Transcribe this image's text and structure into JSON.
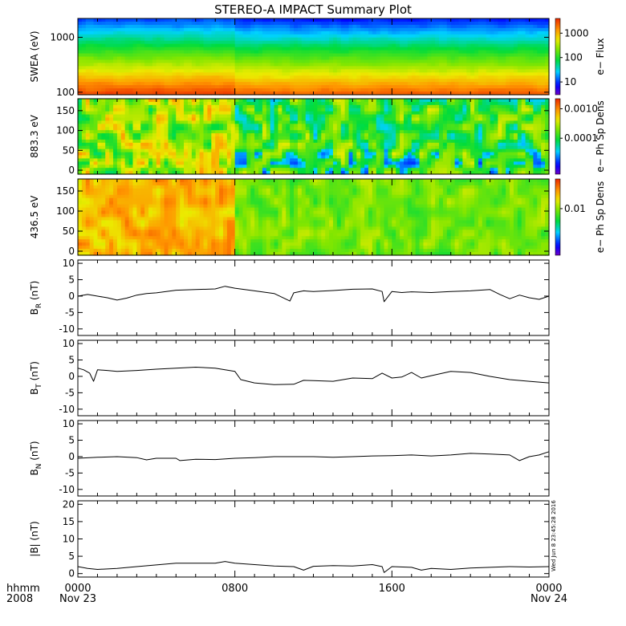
{
  "chart_data": {
    "title": "STEREO-A IMPACT Summary Plot",
    "time_axis": {
      "row1_label": "hhmm",
      "row2_label": "2008",
      "range_hours": [
        0,
        24
      ],
      "ticks": [
        {
          "hour": 0,
          "time": "0000",
          "date": "Nov 23"
        },
        {
          "hour": 8,
          "time": "0800",
          "date": ""
        },
        {
          "hour": 16,
          "time": "1600",
          "date": ""
        },
        {
          "hour": 24,
          "time": "0000",
          "date": "Nov 24"
        }
      ]
    },
    "timestamp": "Wed Jun  8 23:45:28 2016",
    "panels": [
      {
        "type": "heatmap",
        "ylabel": "SWEA (eV)",
        "yscale": "log",
        "ylim": [
          90,
          2200
        ],
        "yticks": [
          {
            "v": 100,
            "l": "100"
          },
          {
            "v": 1000,
            "l": "1000"
          }
        ],
        "colorbar_label": "e− Flux",
        "colorbar_ticks": [
          {
            "v": 10,
            "l": "10"
          },
          {
            "v": 100,
            "l": "100"
          },
          {
            "v": 1000,
            "l": "1000"
          }
        ],
        "colorbar_range": [
          3,
          4000
        ],
        "colorbar_scale": "log",
        "description": "flux decreases with energy; flux higher before 0800"
      },
      {
        "type": "heatmap",
        "ylabel": "883.3 eV",
        "yscale": "linear",
        "ylim": [
          -10,
          180
        ],
        "yticks": [
          {
            "v": 0,
            "l": "0"
          },
          {
            "v": 50,
            "l": "50"
          },
          {
            "v": 100,
            "l": "100"
          },
          {
            "v": 150,
            "l": "150"
          }
        ],
        "colorbar_label": "e− Ph Sp Dens",
        "colorbar_ticks": [
          {
            "v": 0.0001,
            "l": "0.0001"
          },
          {
            "v": 0.001,
            "l": "0.0010"
          }
        ],
        "colorbar_range": [
          6e-06,
          0.0022
        ],
        "colorbar_scale": "log"
      },
      {
        "type": "heatmap",
        "ylabel": "436.5 eV",
        "yscale": "linear",
        "ylim": [
          -10,
          180
        ],
        "yticks": [
          {
            "v": 0,
            "l": "0"
          },
          {
            "v": 50,
            "l": "50"
          },
          {
            "v": 100,
            "l": "100"
          },
          {
            "v": 150,
            "l": "150"
          }
        ],
        "colorbar_label": "e− Ph Sp Dens",
        "colorbar_ticks": [
          {
            "v": 0.01,
            "l": "0.01"
          }
        ],
        "colorbar_range": [
          0.0006,
          0.06
        ],
        "colorbar_scale": "log"
      },
      {
        "type": "line",
        "ylabel_main": "B",
        "ylabel_sub": "R",
        "ylabel_unit": " (nT)",
        "ylim": [
          -12,
          11
        ],
        "yticks": [
          -10,
          -5,
          0,
          5,
          10
        ],
        "x": [
          0,
          0.5,
          1,
          1.5,
          2,
          2.5,
          3,
          3.5,
          4,
          5,
          6,
          7,
          7.5,
          8,
          9,
          10,
          10.8,
          11,
          11.5,
          12,
          13,
          14,
          15,
          15.5,
          15.6,
          16,
          16.5,
          17,
          18,
          19,
          20,
          21,
          21.5,
          22,
          22.5,
          23,
          23.5,
          24
        ],
        "y": [
          0,
          0.5,
          0,
          -0.5,
          -1.2,
          -0.6,
          0.3,
          0.8,
          1,
          1.8,
          2,
          2.2,
          3,
          2.4,
          1.6,
          0.8,
          -1.5,
          1,
          1.6,
          1.4,
          1.7,
          2.1,
          2.2,
          1.4,
          -1.7,
          1.4,
          1.1,
          1.3,
          1.1,
          1.4,
          1.6,
          2,
          0.5,
          -0.8,
          0.3,
          -0.5,
          -1,
          0
        ]
      },
      {
        "type": "line",
        "ylabel_main": "B",
        "ylabel_sub": "T",
        "ylabel_unit": " (nT)",
        "ylim": [
          -12,
          11
        ],
        "yticks": [
          -10,
          -5,
          0,
          5,
          10
        ],
        "x": [
          0,
          0.3,
          0.6,
          0.8,
          1,
          1.5,
          2,
          3,
          4,
          5,
          6,
          7,
          7.5,
          8,
          8.3,
          9,
          10,
          11,
          11.5,
          12,
          13,
          14,
          15,
          15.5,
          16,
          16.5,
          17,
          17.5,
          18,
          19,
          20,
          21,
          22,
          23,
          24
        ],
        "y": [
          2.5,
          2,
          1,
          -1.5,
          2,
          1.8,
          1.5,
          1.8,
          2.2,
          2.5,
          2.8,
          2.5,
          2,
          1.5,
          -1,
          -2,
          -2.5,
          -2.4,
          -1.2,
          -1.3,
          -1.5,
          -0.5,
          -0.7,
          1,
          -0.5,
          -0.2,
          1.2,
          -0.5,
          0.2,
          1.5,
          1.2,
          0,
          -1,
          -1.5,
          -2
        ]
      },
      {
        "type": "line",
        "ylabel_main": "B",
        "ylabel_sub": "N",
        "ylabel_unit": " (nT)",
        "ylim": [
          -12,
          11
        ],
        "yticks": [
          -10,
          -5,
          0,
          5,
          10
        ],
        "x": [
          0,
          1,
          2,
          3,
          3.5,
          4,
          5,
          5.2,
          6,
          7,
          8,
          9,
          10,
          11,
          12,
          13,
          14,
          15,
          16,
          17,
          18,
          19,
          20,
          21,
          22,
          22.5,
          23,
          23.5,
          24
        ],
        "y": [
          -0.5,
          -0.2,
          0,
          -0.3,
          -1,
          -0.5,
          -0.5,
          -1.2,
          -0.8,
          -0.9,
          -0.5,
          -0.3,
          0,
          0,
          0,
          -0.2,
          0,
          0.2,
          0.3,
          0.5,
          0.2,
          0.5,
          1,
          0.8,
          0.5,
          -1.2,
          0,
          0.5,
          1.5
        ]
      },
      {
        "type": "line",
        "ylabel_main": "|B|",
        "ylabel_sub": "",
        "ylabel_unit": " (nT)",
        "ylim": [
          -1,
          21
        ],
        "yticks": [
          0,
          5,
          10,
          15,
          20
        ],
        "x": [
          0,
          0.5,
          1,
          2,
          3,
          4,
          5,
          6,
          7,
          7.5,
          8,
          9,
          10,
          11,
          11.5,
          12,
          13,
          14,
          15,
          15.5,
          15.6,
          16,
          17,
          17.5,
          18,
          19,
          20,
          21,
          22,
          23,
          24
        ],
        "y": [
          2,
          1.5,
          1.2,
          1.5,
          2,
          2.5,
          3,
          3,
          3,
          3.5,
          3,
          2.6,
          2.2,
          2,
          1,
          2.1,
          2.3,
          2.2,
          2.6,
          2,
          0.3,
          2,
          1.8,
          1,
          1.5,
          1.2,
          1.6,
          1.8,
          2,
          1.9,
          2
        ]
      }
    ]
  }
}
